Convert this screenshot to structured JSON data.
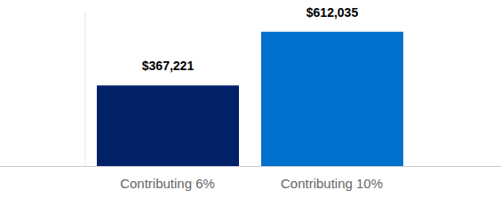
{
  "chart_data": {
    "type": "bar",
    "categories": [
      "Contributing 6%",
      "Contributing 10%"
    ],
    "values": [
      367221,
      612035
    ],
    "value_labels": [
      "$367,221",
      "$612,035"
    ],
    "colors": [
      "#012169",
      "#0072ce"
    ],
    "ylim": [
      0,
      700000
    ],
    "data_labels": true,
    "tick_labels": "x",
    "grid": false
  }
}
